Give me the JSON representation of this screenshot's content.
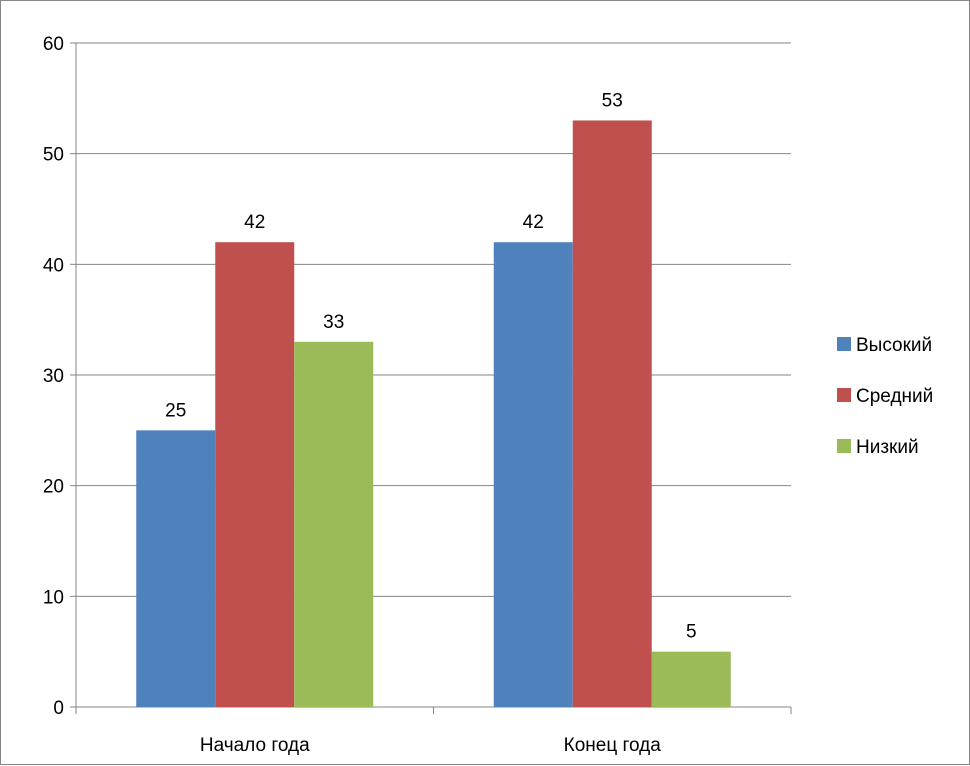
{
  "chart_data": {
    "type": "bar",
    "categories": [
      "Начало года",
      "Конец года"
    ],
    "series": [
      {
        "name": "Высокий",
        "values": [
          25,
          42
        ],
        "color": "#4F81BD"
      },
      {
        "name": "Средний",
        "values": [
          42,
          53
        ],
        "color": "#C0504D"
      },
      {
        "name": "Низкий",
        "values": [
          33,
          5
        ],
        "color": "#9BBB59"
      }
    ],
    "yticks": [
      0,
      10,
      20,
      30,
      40,
      50,
      60
    ],
    "ylim": [
      0,
      60
    ],
    "grid": true,
    "data_labels": true,
    "legend_position": "right",
    "gridline_color": "#868686"
  }
}
